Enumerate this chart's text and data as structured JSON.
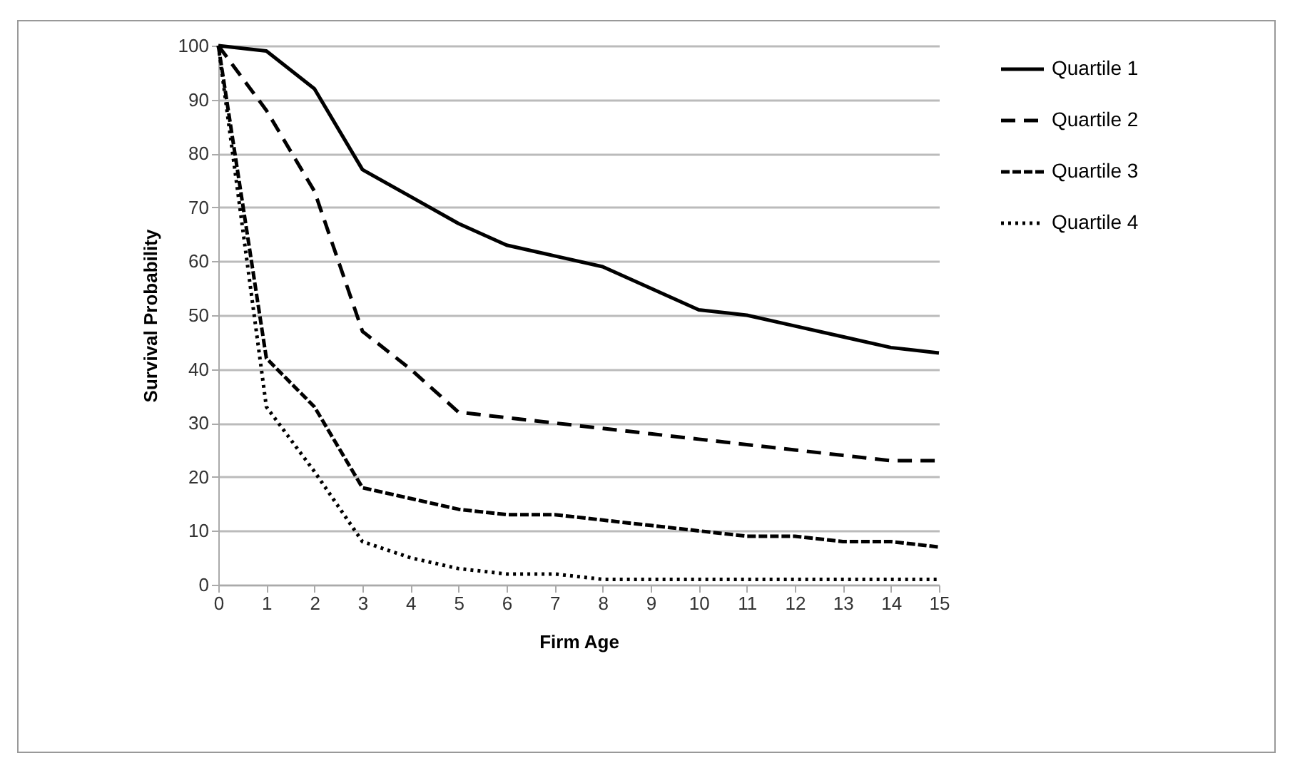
{
  "chart_data": {
    "type": "line",
    "xlabel": "Firm Age",
    "ylabel": "Survival Probability",
    "x": [
      0,
      1,
      2,
      3,
      4,
      5,
      6,
      7,
      8,
      9,
      10,
      11,
      12,
      13,
      14,
      15
    ],
    "series": [
      {
        "name": "Quartile  1",
        "color": "#000000",
        "line_style": "solid",
        "values": [
          100,
          99,
          92,
          77,
          72,
          67,
          63,
          61,
          59,
          55,
          51,
          50,
          48,
          46,
          44,
          43
        ]
      },
      {
        "name": "Quartile 2",
        "color": "#000000",
        "line_style": "dashed",
        "values": [
          100,
          88,
          73,
          47,
          40,
          32,
          31,
          30,
          29,
          28,
          27,
          26,
          25,
          24,
          23,
          23
        ]
      },
      {
        "name": "Quartile 3",
        "color": "#000000",
        "line_style": "dashed",
        "values": [
          100,
          42,
          33,
          18,
          16,
          14,
          13,
          13,
          12,
          11,
          10,
          9,
          9,
          8,
          8,
          7
        ]
      },
      {
        "name": "Quartile 4",
        "color": "#000000",
        "line_style": "dotted",
        "values": [
          100,
          33,
          21,
          8,
          5,
          3,
          2,
          2,
          1,
          1,
          1,
          1,
          1,
          1,
          1,
          1
        ]
      }
    ],
    "xlim": [
      0,
      15
    ],
    "xticks": [
      0,
      1,
      2,
      3,
      4,
      5,
      6,
      7,
      8,
      9,
      10,
      11,
      12,
      13,
      14,
      15
    ],
    "ylim": [
      0,
      100
    ],
    "yticks": [
      0,
      10,
      20,
      30,
      40,
      50,
      60,
      70,
      80,
      90,
      100
    ],
    "grid": "y",
    "legend": "right",
    "marker": "none"
  }
}
